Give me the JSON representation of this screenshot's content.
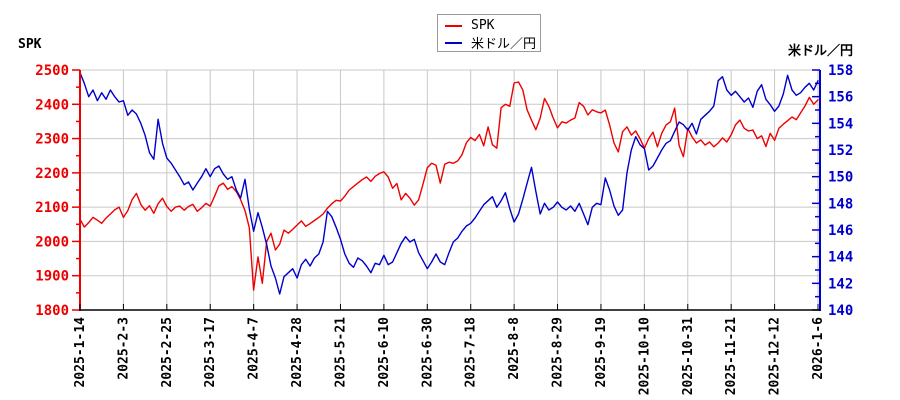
{
  "axis_titles": {
    "left": "SPK",
    "right": "米ドル／円"
  },
  "legend": {
    "items": [
      {
        "label": "SPK",
        "color": "#ee0000"
      },
      {
        "label": "米ドル／円",
        "color": "#0000cc"
      }
    ]
  },
  "chart_data": {
    "type": "line",
    "grid_color": "#c8c8c8",
    "x_tick_labels": [
      "2025-1-14",
      "2025-2-3",
      "2025-2-25",
      "2025-3-17",
      "2025-4-7",
      "2025-4-28",
      "2025-5-21",
      "2025-6-10",
      "2025-6-30",
      "2025-7-18",
      "2025-8-8",
      "2025-8-29",
      "2025-9-19",
      "2025-10-10",
      "2025-10-31",
      "2025-11-21",
      "2025-12-12",
      "2026-1-6"
    ],
    "left_axis": {
      "title": "SPK",
      "color": "#ee0000",
      "min": 1800,
      "max": 2500,
      "major_step": 100,
      "minor_step": 50,
      "tick_labels": [
        "1800",
        "1900",
        "2000",
        "2100",
        "2200",
        "2300",
        "2400",
        "2500"
      ]
    },
    "right_axis": {
      "title": "米ドル／円",
      "color": "#0000cc",
      "min": 140,
      "max": 158,
      "major_step": 2,
      "minor_step": 1,
      "tick_labels": [
        "140",
        "142",
        "144",
        "146",
        "148",
        "150",
        "152",
        "154",
        "156",
        "158"
      ]
    },
    "series": [
      {
        "name": "SPK",
        "axis": "left",
        "color": "#ee0000",
        "values": [
          2065,
          2042,
          2055,
          2070,
          2062,
          2053,
          2068,
          2080,
          2092,
          2100,
          2070,
          2090,
          2122,
          2140,
          2108,
          2091,
          2104,
          2082,
          2110,
          2126,
          2102,
          2088,
          2100,
          2103,
          2091,
          2102,
          2108,
          2088,
          2098,
          2111,
          2103,
          2132,
          2162,
          2170,
          2152,
          2160,
          2145,
          2122,
          2090,
          2040,
          1858,
          1955,
          1878,
          2000,
          2024,
          1975,
          1992,
          2033,
          2024,
          2035,
          2048,
          2060,
          2044,
          2052,
          2061,
          2070,
          2080,
          2097,
          2110,
          2120,
          2118,
          2132,
          2150,
          2160,
          2170,
          2180,
          2188,
          2175,
          2190,
          2198,
          2203,
          2188,
          2155,
          2169,
          2121,
          2140,
          2126,
          2106,
          2121,
          2167,
          2215,
          2228,
          2222,
          2170,
          2225,
          2231,
          2228,
          2235,
          2253,
          2288,
          2303,
          2294,
          2312,
          2279,
          2334,
          2282,
          2272,
          2390,
          2400,
          2394,
          2462,
          2465,
          2442,
          2384,
          2354,
          2326,
          2360,
          2417,
          2394,
          2360,
          2331,
          2349,
          2345,
          2354,
          2360,
          2405,
          2394,
          2369,
          2384,
          2378,
          2375,
          2383,
          2340,
          2287,
          2261,
          2320,
          2334,
          2310,
          2322,
          2300,
          2272,
          2300,
          2319,
          2276,
          2315,
          2340,
          2349,
          2389,
          2280,
          2247,
          2330,
          2305,
          2287,
          2296,
          2281,
          2290,
          2276,
          2287,
          2302,
          2290,
          2311,
          2340,
          2354,
          2330,
          2322,
          2325,
          2300,
          2308,
          2277,
          2315,
          2295,
          2330,
          2342,
          2352,
          2363,
          2355,
          2375,
          2395,
          2420,
          2400,
          2413
        ]
      },
      {
        "name": "米ドル／円",
        "axis": "right",
        "color": "#0000cc",
        "values": [
          157.8,
          157.0,
          156.0,
          156.5,
          155.7,
          156.3,
          155.8,
          156.5,
          156.0,
          155.6,
          155.7,
          154.6,
          155.0,
          154.7,
          154.0,
          153.1,
          151.8,
          151.3,
          154.3,
          152.5,
          151.4,
          151.0,
          150.5,
          150.0,
          149.4,
          149.6,
          149.0,
          149.5,
          150.0,
          150.6,
          150.0,
          150.6,
          150.8,
          150.2,
          149.8,
          150.0,
          149.0,
          148.4,
          149.8,
          147.6,
          145.9,
          147.3,
          146.2,
          144.9,
          143.3,
          142.4,
          141.2,
          142.5,
          142.8,
          143.1,
          142.4,
          143.4,
          143.8,
          143.3,
          143.9,
          144.2,
          145.1,
          147.4,
          147.0,
          146.2,
          145.3,
          144.2,
          143.5,
          143.2,
          143.9,
          143.7,
          143.3,
          142.8,
          143.5,
          143.4,
          144.1,
          143.4,
          143.6,
          144.3,
          145.0,
          145.5,
          145.1,
          145.3,
          144.3,
          143.7,
          143.1,
          143.6,
          144.2,
          143.6,
          143.4,
          144.3,
          145.1,
          145.4,
          145.9,
          146.3,
          146.5,
          146.9,
          147.4,
          147.9,
          148.2,
          148.5,
          147.7,
          148.2,
          148.8,
          147.6,
          146.6,
          147.2,
          148.3,
          149.5,
          150.7,
          148.9,
          147.2,
          148.0,
          147.5,
          147.7,
          148.1,
          147.7,
          147.5,
          147.8,
          147.4,
          148.0,
          147.2,
          146.4,
          147.7,
          148.0,
          147.9,
          149.9,
          149.0,
          147.8,
          147.1,
          147.5,
          150.3,
          152.0,
          153.0,
          152.4,
          152.1,
          150.5,
          150.8,
          151.4,
          152.0,
          152.5,
          152.7,
          153.4,
          154.1,
          153.9,
          153.5,
          154.0,
          153.2,
          154.3,
          154.6,
          154.9,
          155.3,
          157.2,
          157.5,
          156.5,
          156.1,
          156.4,
          156.0,
          155.6,
          155.9,
          155.2,
          156.4,
          156.9,
          155.8,
          155.4,
          154.9,
          155.3,
          156.2,
          157.6,
          156.5,
          156.1,
          156.3,
          156.7,
          157.0,
          156.5,
          157.2
        ]
      }
    ],
    "legend_position": "top-center",
    "grid": true
  }
}
